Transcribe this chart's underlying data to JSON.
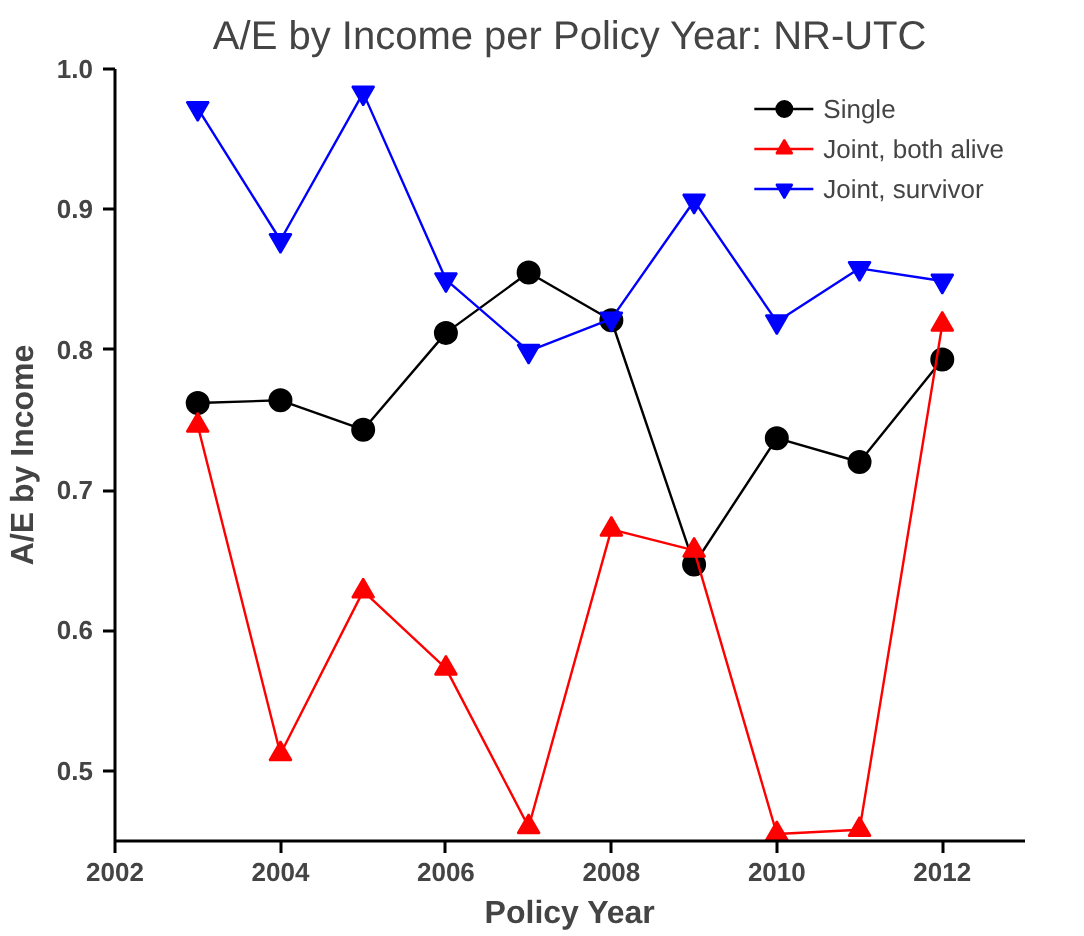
{
  "chart_data": {
    "type": "line",
    "title": "A/E by Income per Policy Year: NR-UTC",
    "xlabel": "Policy Year",
    "ylabel": "A/E by Income",
    "x": [
      2003,
      2004,
      2005,
      2006,
      2007,
      2008,
      2009,
      2010,
      2011,
      2012
    ],
    "series": [
      {
        "name": "Single",
        "color": "#000000",
        "marker": "circle",
        "values": [
          0.762,
          0.764,
          0.743,
          0.812,
          0.855,
          0.821,
          0.647,
          0.737,
          0.72,
          0.793
        ]
      },
      {
        "name": "Joint, both alive",
        "color": "#ff0000",
        "marker": "triangle",
        "values": [
          0.746,
          0.512,
          0.628,
          0.573,
          0.46,
          0.672,
          0.657,
          0.455,
          0.458,
          0.818
        ]
      },
      {
        "name": "Joint, survivor",
        "color": "#0000ff",
        "marker": "triangle",
        "values": [
          0.972,
          0.878,
          0.983,
          0.85,
          0.799,
          0.822,
          0.906,
          0.82,
          0.858,
          0.849
        ]
      }
    ],
    "xlim": [
      2002,
      2013
    ],
    "xticks": [
      2002,
      2004,
      2006,
      2008,
      2010,
      2012
    ],
    "ylim": [
      0.45,
      1.0
    ],
    "yticks": [
      {
        "value": 0.5,
        "label": "0.5"
      },
      {
        "value": 0.6,
        "label": "0.6"
      },
      {
        "value": 0.7,
        "label": "0.7"
      },
      {
        "value": 0.8,
        "label": "0.8"
      },
      {
        "value": 0.9,
        "label": "0.9"
      },
      {
        "value": 1.0,
        "label": "1.0"
      }
    ],
    "grid": false,
    "legend": "top right",
    "line_style": "solid"
  }
}
